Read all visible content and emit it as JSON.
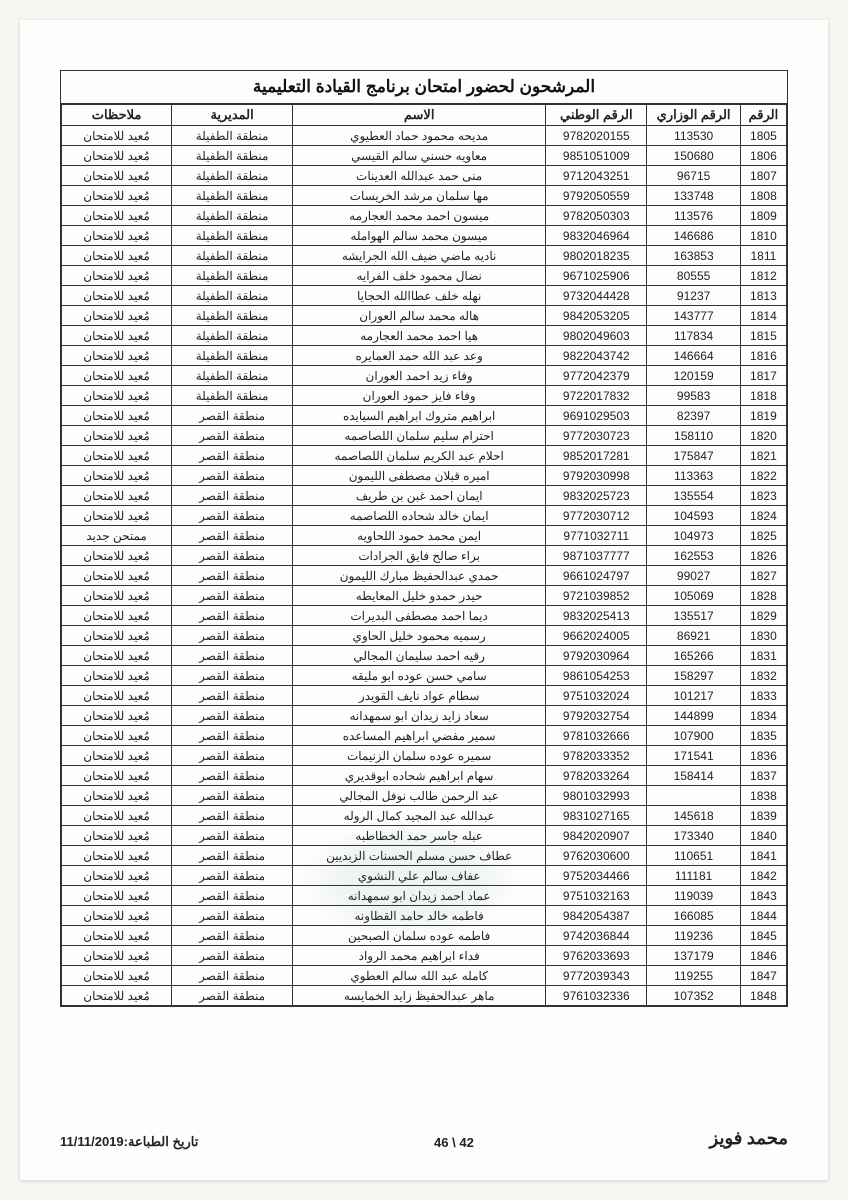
{
  "title": "المرشحون لحضور امتحان برنامج القيادة التعليمية",
  "headers": {
    "num": "الرقم",
    "ministry": "الرقم الوزاري",
    "national": "الرقم الوطني",
    "name": "الاسم",
    "directorate": "المديرية",
    "notes": "ملاحظات"
  },
  "rows": [
    {
      "num": "1805",
      "min": "113530",
      "nat": "9782020155",
      "name": "مديحه محمود حماد العطيوي",
      "dir": "منطقة الطفيلة",
      "notes": "مُعيد للامتحان"
    },
    {
      "num": "1806",
      "min": "150680",
      "nat": "9851051009",
      "name": "معاويه حسني سالم القيسي",
      "dir": "منطقة الطفيلة",
      "notes": "مُعيد للامتحان"
    },
    {
      "num": "1807",
      "min": "96715",
      "nat": "9712043251",
      "name": "منى حمد عبدالله العدينات",
      "dir": "منطقة الطفيلة",
      "notes": "مُعيد للامتحان"
    },
    {
      "num": "1808",
      "min": "133748",
      "nat": "9792050559",
      "name": "مها سلمان مرشد الخريسات",
      "dir": "منطقة الطفيلة",
      "notes": "مُعيد للامتحان"
    },
    {
      "num": "1809",
      "min": "113576",
      "nat": "9782050303",
      "name": "ميسون احمد محمد العجارمه",
      "dir": "منطقة الطفيلة",
      "notes": "مُعيد للامتحان"
    },
    {
      "num": "1810",
      "min": "146686",
      "nat": "9832046964",
      "name": "ميسون محمد سالم الهوامله",
      "dir": "منطقة الطفيلة",
      "notes": "مُعيد للامتحان"
    },
    {
      "num": "1811",
      "min": "163853",
      "nat": "9802018235",
      "name": "ناديه ماضي ضيف الله الجرايشه",
      "dir": "منطقة الطفيلة",
      "notes": "مُعيد للامتحان"
    },
    {
      "num": "1812",
      "min": "80555",
      "nat": "9671025906",
      "name": "نضال محمود خلف الفرايه",
      "dir": "منطقة الطفيلة",
      "notes": "مُعيد للامتحان"
    },
    {
      "num": "1813",
      "min": "91237",
      "nat": "9732044428",
      "name": "نهله خلف عطاالله الحجايا",
      "dir": "منطقة الطفيلة",
      "notes": "مُعيد للامتحان"
    },
    {
      "num": "1814",
      "min": "143777",
      "nat": "9842053205",
      "name": "هاله محمد سالم العوران",
      "dir": "منطقة الطفيلة",
      "notes": "مُعيد للامتحان"
    },
    {
      "num": "1815",
      "min": "117834",
      "nat": "9802049603",
      "name": "هيا احمد محمد العجارمه",
      "dir": "منطقة الطفيلة",
      "notes": "مُعيد للامتحان"
    },
    {
      "num": "1816",
      "min": "146664",
      "nat": "9822043742",
      "name": "وعد عبد الله حمد العمايره",
      "dir": "منطقة الطفيلة",
      "notes": "مُعيد للامتحان"
    },
    {
      "num": "1817",
      "min": "120159",
      "nat": "9772042379",
      "name": "وفاء زيد احمد العوران",
      "dir": "منطقة الطفيلة",
      "notes": "مُعيد للامتحان"
    },
    {
      "num": "1818",
      "min": "99583",
      "nat": "9722017832",
      "name": "وفاء فايز حمود العوران",
      "dir": "منطقة الطفيلة",
      "notes": "مُعيد للامتحان"
    },
    {
      "num": "1819",
      "min": "82397",
      "nat": "9691029503",
      "name": "ابراهيم متروك ابراهيم السيايده",
      "dir": "منطقة القصر",
      "notes": "مُعيد للامتحان"
    },
    {
      "num": "1820",
      "min": "158110",
      "nat": "9772030723",
      "name": "احترام سليم سلمان اللصاصمه",
      "dir": "منطقة القصر",
      "notes": "مُعيد للامتحان"
    },
    {
      "num": "1821",
      "min": "175847",
      "nat": "9852017281",
      "name": "احلام عبد الكريم سلمان اللصاصمه",
      "dir": "منطقة القصر",
      "notes": "مُعيد للامتحان"
    },
    {
      "num": "1822",
      "min": "113363",
      "nat": "9792030998",
      "name": "اميره قبلان مصطفى الليمون",
      "dir": "منطقة القصر",
      "notes": "مُعيد للامتحان"
    },
    {
      "num": "1823",
      "min": "135554",
      "nat": "9832025723",
      "name": "ايمان احمد غبن بن طريف",
      "dir": "منطقة القصر",
      "notes": "مُعيد للامتحان"
    },
    {
      "num": "1824",
      "min": "104593",
      "nat": "9772030712",
      "name": "ايمان خالد شحاده اللصاصمه",
      "dir": "منطقة القصر",
      "notes": "مُعيد للامتحان"
    },
    {
      "num": "1825",
      "min": "104973",
      "nat": "9771032711",
      "name": "ايمن محمد حمود اللحاويه",
      "dir": "منطقة القصر",
      "notes": "ممتحن جديد"
    },
    {
      "num": "1826",
      "min": "162553",
      "nat": "9871037777",
      "name": "براء صالح فايق الجرادات",
      "dir": "منطقة القصر",
      "notes": "مُعيد للامتحان"
    },
    {
      "num": "1827",
      "min": "99027",
      "nat": "9661024797",
      "name": "حمدي عبدالحفيظ مبارك الليمون",
      "dir": "منطقة القصر",
      "notes": "مُعيد للامتحان"
    },
    {
      "num": "1828",
      "min": "105069",
      "nat": "9721039852",
      "name": "حيدر حمدو خليل المعايطه",
      "dir": "منطقة القصر",
      "notes": "مُعيد للامتحان"
    },
    {
      "num": "1829",
      "min": "135517",
      "nat": "9832025413",
      "name": "ديما احمد مصطفى البديرات",
      "dir": "منطقة القصر",
      "notes": "مُعيد للامتحان"
    },
    {
      "num": "1830",
      "min": "86921",
      "nat": "9662024005",
      "name": "رسميه محمود خليل الحاوي",
      "dir": "منطقة القصر",
      "notes": "مُعيد للامتحان"
    },
    {
      "num": "1831",
      "min": "165266",
      "nat": "9792030964",
      "name": "رقيه احمد سليمان المجالي",
      "dir": "منطقة القصر",
      "notes": "مُعيد للامتحان"
    },
    {
      "num": "1832",
      "min": "158297",
      "nat": "9861054253",
      "name": "سامي حسن عوده ابو مليقه",
      "dir": "منطقة القصر",
      "notes": "مُعيد للامتحان"
    },
    {
      "num": "1833",
      "min": "101217",
      "nat": "9751032024",
      "name": "سطام عواد نايف القويدر",
      "dir": "منطقة القصر",
      "notes": "مُعيد للامتحان"
    },
    {
      "num": "1834",
      "min": "144899",
      "nat": "9792032754",
      "name": "سعاد زايد زيدان ابو سمهدانه",
      "dir": "منطقة القصر",
      "notes": "مُعيد للامتحان"
    },
    {
      "num": "1835",
      "min": "107900",
      "nat": "9781032666",
      "name": "سمير مفضي ابراهيم المساعده",
      "dir": "منطقة القصر",
      "notes": "مُعيد للامتحان"
    },
    {
      "num": "1836",
      "min": "171541",
      "nat": "9782033352",
      "name": "سميره عوده سلمان الزنيمات",
      "dir": "منطقة القصر",
      "notes": "مُعيد للامتحان"
    },
    {
      "num": "1837",
      "min": "158414",
      "nat": "9782033264",
      "name": "سهام ابراهيم شحاده ابوقديري",
      "dir": "منطقة القصر",
      "notes": "مُعيد للامتحان"
    },
    {
      "num": "1838",
      "min": "",
      "nat": "9801032993",
      "name": "عبد الرحمن طالب نوفل المجالي",
      "dir": "منطقة القصر",
      "notes": "مُعيد للامتحان"
    },
    {
      "num": "1839",
      "min": "145618",
      "nat": "9831027165",
      "name": "عبدالله عبد المجيد كمال الروله",
      "dir": "منطقة القصر",
      "notes": "مُعيد للامتحان"
    },
    {
      "num": "1840",
      "min": "173340",
      "nat": "9842020907",
      "name": "عبله جاسر حمد الخطاطبه",
      "dir": "منطقة القصر",
      "notes": "مُعيد للامتحان"
    },
    {
      "num": "1841",
      "min": "110651",
      "nat": "9762030600",
      "name": "عطاف حسن مسلم الحسنات الزبديين",
      "dir": "منطقة القصر",
      "notes": "مُعيد للامتحان"
    },
    {
      "num": "1842",
      "min": "111181",
      "nat": "9752034466",
      "name": "عفاف سالم علي النشوي",
      "dir": "منطقة القصر",
      "notes": "مُعيد للامتحان"
    },
    {
      "num": "1843",
      "min": "119039",
      "nat": "9751032163",
      "name": "عماد احمد زيدان ابو سمهدانه",
      "dir": "منطقة القصر",
      "notes": "مُعيد للامتحان"
    },
    {
      "num": "1844",
      "min": "166085",
      "nat": "9842054387",
      "name": "فاطمه خالد حامد القطاونه",
      "dir": "منطقة القصر",
      "notes": "مُعيد للامتحان"
    },
    {
      "num": "1845",
      "min": "119236",
      "nat": "9742036844",
      "name": "فاطمه عوده سلمان الصبحين",
      "dir": "منطقة القصر",
      "notes": "مُعيد للامتحان"
    },
    {
      "num": "1846",
      "min": "137179",
      "nat": "9762033693",
      "name": "فداء ابراهيم محمد الرواد",
      "dir": "منطقة القصر",
      "notes": "مُعيد للامتحان"
    },
    {
      "num": "1847",
      "min": "119255",
      "nat": "9772039343",
      "name": "كامله عبد الله سالم العطوي",
      "dir": "منطقة القصر",
      "notes": "مُعيد للامتحان"
    },
    {
      "num": "1848",
      "min": "107352",
      "nat": "9761032336",
      "name": "ماهر عبدالحفيظ زايد الخمايسه",
      "dir": "منطقة القصر",
      "notes": "مُعيد للامتحان"
    }
  ],
  "footer": {
    "print_date_label": "تاريخ الطباعة:",
    "print_date": "11/11/2019",
    "page_info": "42 \\ 46",
    "signature": "محمد فويز"
  },
  "styling": {
    "page_bg": "#fdfdfb",
    "border_color": "#333333",
    "title_fontsize": 17,
    "body_fontsize": 12,
    "header_fontsize": 13
  }
}
